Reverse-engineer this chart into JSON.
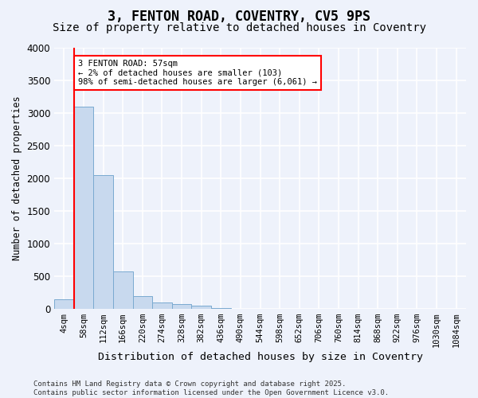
{
  "title1": "3, FENTON ROAD, COVENTRY, CV5 9PS",
  "title2": "Size of property relative to detached houses in Coventry",
  "xlabel": "Distribution of detached houses by size in Coventry",
  "ylabel": "Number of detached properties",
  "bar_color": "#c8d9ee",
  "bar_edge_color": "#7aaad0",
  "bin_labels": [
    "4sqm",
    "58sqm",
    "112sqm",
    "166sqm",
    "220sqm",
    "274sqm",
    "328sqm",
    "382sqm",
    "436sqm",
    "490sqm",
    "544sqm",
    "598sqm",
    "652sqm",
    "706sqm",
    "760sqm",
    "814sqm",
    "868sqm",
    "922sqm",
    "976sqm",
    "1030sqm",
    "1084sqm"
  ],
  "values": [
    150,
    3100,
    2050,
    575,
    195,
    100,
    75,
    50,
    5,
    0,
    0,
    0,
    0,
    0,
    0,
    0,
    0,
    0,
    0,
    0,
    0
  ],
  "ylim": [
    0,
    4000
  ],
  "yticks": [
    0,
    500,
    1000,
    1500,
    2000,
    2500,
    3000,
    3500,
    4000
  ],
  "annotation_text": "3 FENTON ROAD: 57sqm\n← 2% of detached houses are smaller (103)\n98% of semi-detached houses are larger (6,061) →",
  "annotation_box_color": "#ffffff",
  "annotation_box_edge": "#ff0000",
  "red_line_color": "#ff0000",
  "red_line_x": 0.5,
  "footer1": "Contains HM Land Registry data © Crown copyright and database right 2025.",
  "footer2": "Contains public sector information licensed under the Open Government Licence v3.0.",
  "background_color": "#eef2fb",
  "grid_color": "#ffffff",
  "title_fontsize": 12,
  "subtitle_fontsize": 10,
  "tick_fontsize": 7.5,
  "footer_fontsize": 6.5
}
